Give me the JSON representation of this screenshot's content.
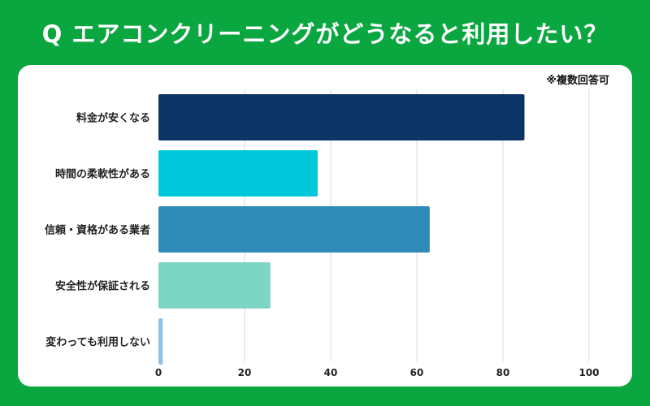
{
  "title": "Q エアコンクリーニングがどうなると利用したい？",
  "note": "※複数回答可",
  "chart_data": {
    "type": "bar",
    "orientation": "horizontal",
    "title": "Q エアコンクリーニングがどうなると利用したい？",
    "categories": [
      "料金が安くなる",
      "時間の柔軟性がある",
      "信頼・資格がある業者",
      "安全性が保証される",
      "変わっても利用しない"
    ],
    "values": [
      85,
      37,
      63,
      26,
      1
    ],
    "colors": [
      "#0c3566",
      "#00c8dc",
      "#2e8bb8",
      "#7dd6c4",
      "#8ec2ea"
    ],
    "xlim": [
      0,
      100
    ],
    "xticks": [
      0,
      20,
      40,
      60,
      80,
      100
    ],
    "grid": true,
    "legend": "none"
  }
}
